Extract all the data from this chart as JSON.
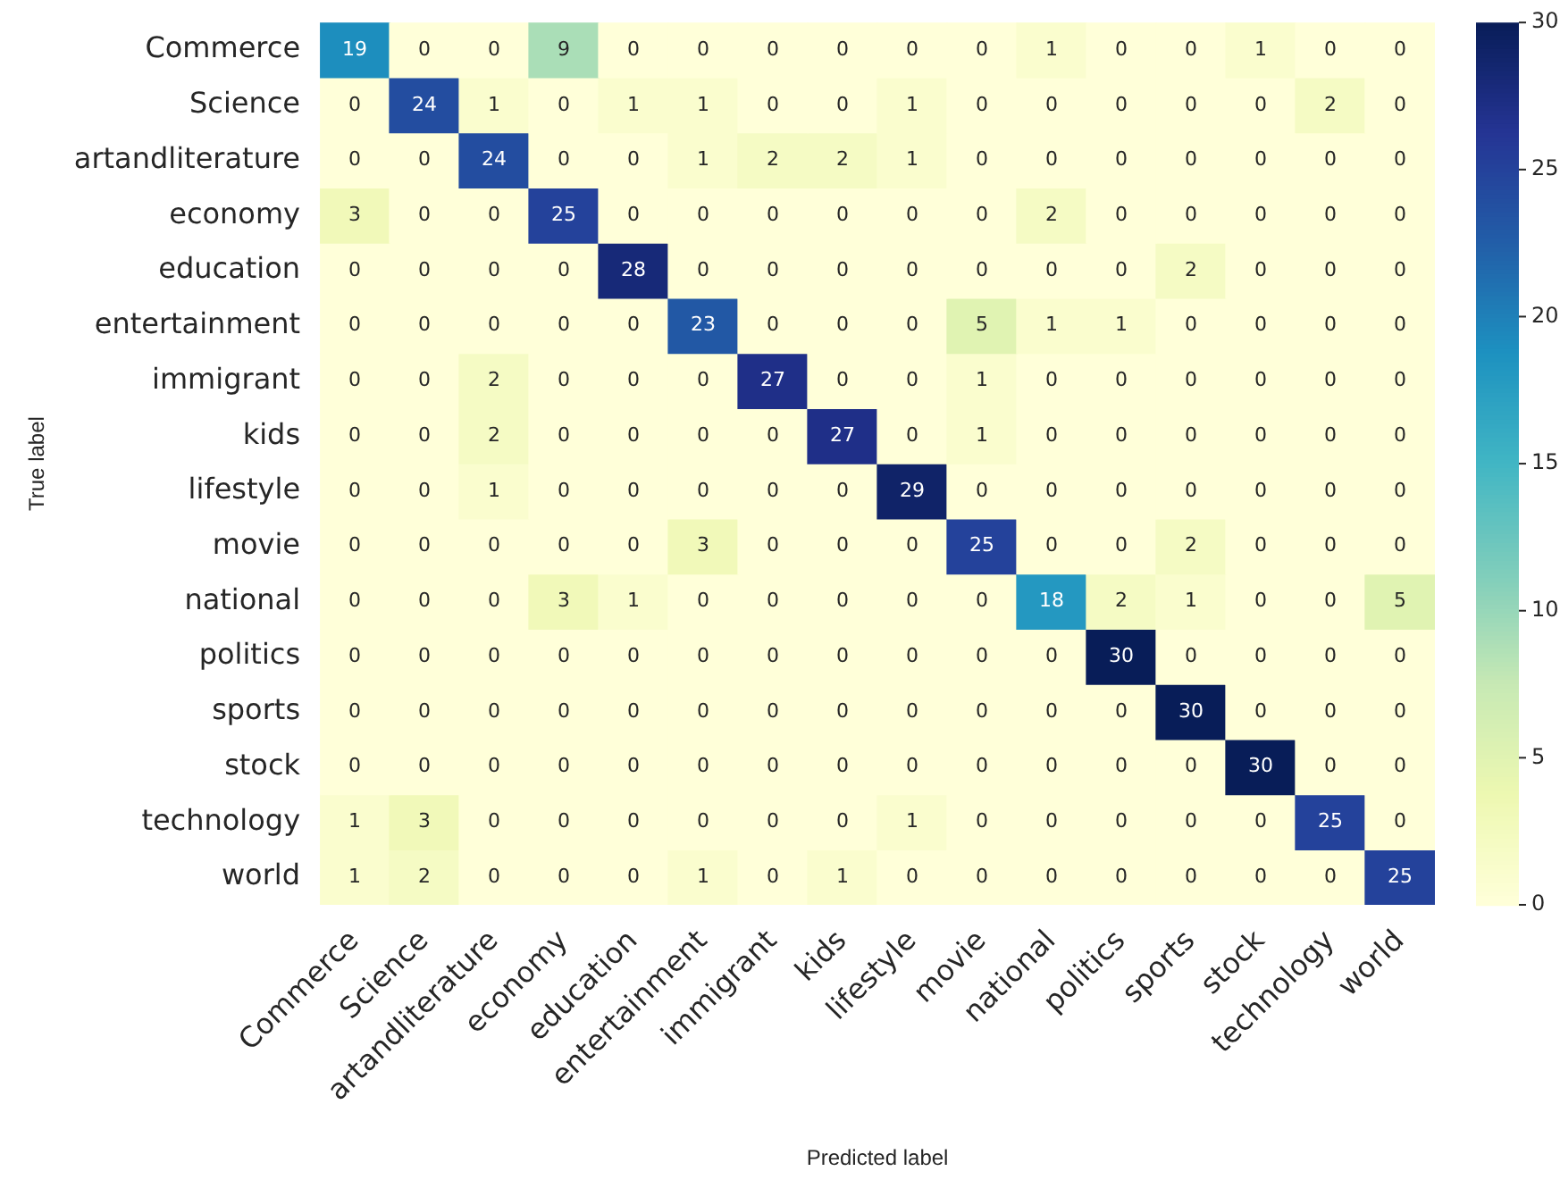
{
  "chart_data": {
    "type": "heatmap",
    "xlabel": "Predicted label",
    "ylabel": "True label",
    "categories": [
      "Commerce",
      "Science",
      "artandliterature",
      "economy",
      "education",
      "entertainment",
      "immigrant",
      "kids",
      "lifestyle",
      "movie",
      "national",
      "politics",
      "sports",
      "stock",
      "technology",
      "world"
    ],
    "y_categories": [
      "Commerce",
      "Science",
      "artandliterature",
      "economy",
      "education",
      "entertainment",
      "immigrant",
      "kids",
      "lifestyle",
      "movie",
      "national",
      "politics",
      "sports",
      "stock",
      "technology",
      "world"
    ],
    "cells": [
      [
        19,
        0,
        0,
        9,
        0,
        0,
        0,
        0,
        0,
        0,
        1,
        0,
        0,
        1,
        0,
        0
      ],
      [
        0,
        24,
        1,
        0,
        1,
        1,
        0,
        0,
        1,
        0,
        0,
        0,
        0,
        0,
        2,
        0
      ],
      [
        0,
        0,
        24,
        0,
        0,
        1,
        2,
        2,
        1,
        0,
        0,
        0,
        0,
        0,
        0,
        0
      ],
      [
        3,
        0,
        0,
        25,
        0,
        0,
        0,
        0,
        0,
        0,
        2,
        0,
        0,
        0,
        0,
        0
      ],
      [
        0,
        0,
        0,
        0,
        28,
        0,
        0,
        0,
        0,
        0,
        0,
        0,
        2,
        0,
        0,
        0
      ],
      [
        0,
        0,
        0,
        0,
        0,
        23,
        0,
        0,
        0,
        5,
        1,
        1,
        0,
        0,
        0,
        0
      ],
      [
        0,
        0,
        2,
        0,
        0,
        0,
        27,
        0,
        0,
        1,
        0,
        0,
        0,
        0,
        0,
        0
      ],
      [
        0,
        0,
        2,
        0,
        0,
        0,
        0,
        27,
        0,
        1,
        0,
        0,
        0,
        0,
        0,
        0
      ],
      [
        0,
        0,
        1,
        0,
        0,
        0,
        0,
        0,
        29,
        0,
        0,
        0,
        0,
        0,
        0,
        0
      ],
      [
        0,
        0,
        0,
        0,
        0,
        3,
        0,
        0,
        0,
        25,
        0,
        0,
        2,
        0,
        0,
        0
      ],
      [
        0,
        0,
        0,
        3,
        1,
        0,
        0,
        0,
        0,
        0,
        18,
        2,
        1,
        0,
        0,
        5
      ],
      [
        0,
        0,
        0,
        0,
        0,
        0,
        0,
        0,
        0,
        0,
        0,
        30,
        0,
        0,
        0,
        0
      ],
      [
        0,
        0,
        0,
        0,
        0,
        0,
        0,
        0,
        0,
        0,
        0,
        0,
        30,
        0,
        0,
        0
      ],
      [
        0,
        0,
        0,
        0,
        0,
        0,
        0,
        0,
        0,
        0,
        0,
        0,
        0,
        30,
        0,
        0
      ],
      [
        1,
        3,
        0,
        0,
        0,
        0,
        0,
        0,
        1,
        0,
        0,
        0,
        0,
        0,
        25,
        0
      ],
      [
        1,
        2,
        0,
        0,
        0,
        1,
        0,
        1,
        0,
        0,
        0,
        0,
        0,
        0,
        0,
        25
      ]
    ],
    "clim": [
      0,
      30
    ],
    "cticks": [
      0,
      5,
      10,
      15,
      20,
      25,
      30
    ],
    "data_labels": true
  }
}
